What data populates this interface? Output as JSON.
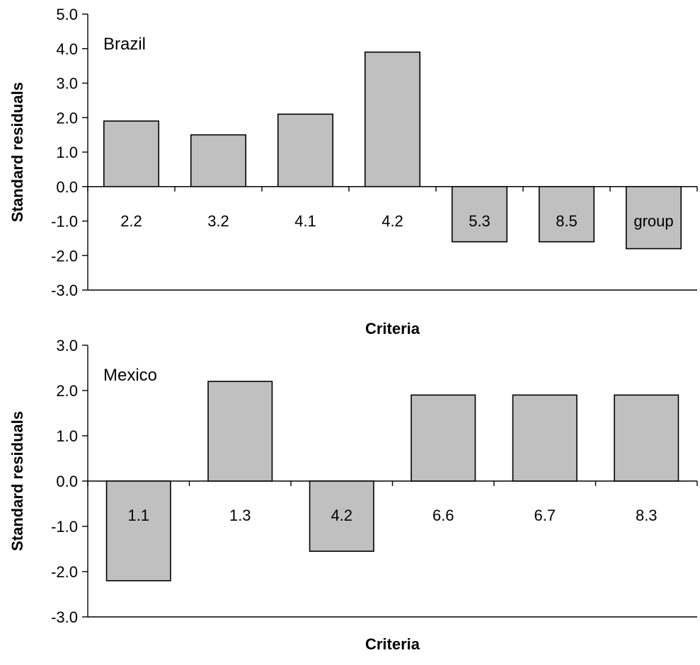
{
  "chart_data": [
    {
      "type": "bar",
      "panel_label": "Brazil",
      "categories": [
        "2.2",
        "3.2",
        "4.1",
        "4.2",
        "5.3",
        "8.5",
        "group"
      ],
      "values": [
        1.9,
        1.5,
        2.1,
        3.9,
        -1.6,
        -1.6,
        -1.8
      ],
      "ylim": [
        -3.0,
        5.0
      ],
      "yticks": [
        "-3.0",
        "-2.0",
        "-1.0",
        "0.0",
        "1.0",
        "2.0",
        "3.0",
        "4.0",
        "5.0"
      ],
      "xlabel": "Criteria",
      "ylabel": "Standard residuals",
      "bar_color": "#c0c0c0",
      "grid": false,
      "legend": "none"
    },
    {
      "type": "bar",
      "panel_label": "Mexico",
      "categories": [
        "1.1",
        "1.3",
        "4.2",
        "6.6",
        "6.7",
        "8.3"
      ],
      "values": [
        -2.2,
        2.2,
        -1.55,
        1.9,
        1.9,
        1.9
      ],
      "ylim": [
        -3.0,
        3.0
      ],
      "yticks": [
        "-3.0",
        "-2.0",
        "-1.0",
        "0.0",
        "1.0",
        "2.0",
        "3.0"
      ],
      "xlabel": "Criteria",
      "ylabel": "Standard residuals",
      "bar_color": "#c0c0c0",
      "grid": false,
      "legend": "none"
    }
  ]
}
